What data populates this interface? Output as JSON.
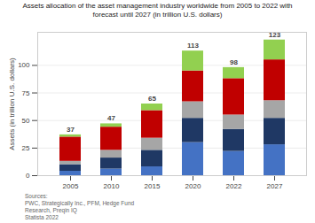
{
  "chart_data": {
    "type": "bar",
    "stacked": true,
    "title": "Assets allocation of the asset management industry worldwide from 2005 to 2022 with\nforecast until 2027 (in trillion U.S. dollars)",
    "ylabel": "Assets (in trillion U.S. dollars)",
    "source": "Sources:\nPWC, Strategically Inc., PFM, Hedge Fund\nResearch, Preqin IQ\nStatista 2022",
    "categories": [
      "2005",
      "2010",
      "2015",
      "2020",
      "2022",
      "2027"
    ],
    "series": [
      {
        "color": "#4472c4",
        "values": [
          4,
          6,
          8,
          30,
          22,
          28
        ]
      },
      {
        "color": "#1f3864",
        "values": [
          6,
          10,
          15,
          22,
          20,
          24
        ]
      },
      {
        "color": "#a6a6a6",
        "values": [
          3,
          7,
          11,
          15,
          13,
          16
        ]
      },
      {
        "color": "#c00000",
        "values": [
          22,
          21,
          25,
          28,
          33,
          37
        ]
      },
      {
        "color": "#92d050",
        "values": [
          2,
          3,
          6,
          18,
          10,
          18
        ]
      }
    ],
    "totals": [
      37,
      47,
      65,
      113,
      98,
      123
    ],
    "ylim": [
      0,
      130
    ],
    "yticks": [
      0,
      25,
      50,
      75,
      100
    ],
    "grid": true
  }
}
